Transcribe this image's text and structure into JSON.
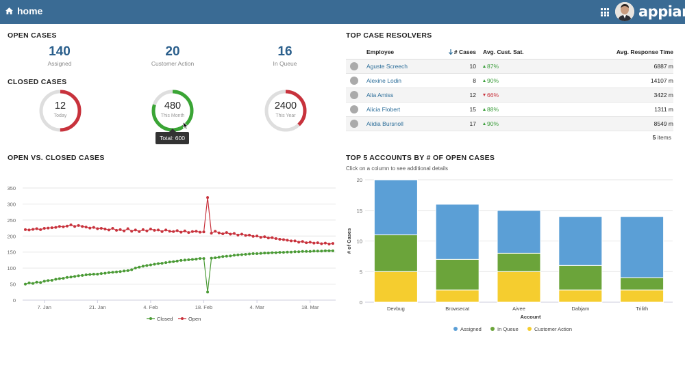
{
  "header": {
    "title": "home",
    "logo_text": "appian",
    "bg_color": "#3a6b94"
  },
  "open_cases": {
    "title": "OPEN CASES",
    "kpis": [
      {
        "value": "140",
        "label": "Assigned"
      },
      {
        "value": "20",
        "label": "Customer Action"
      },
      {
        "value": "16",
        "label": "In Queue"
      }
    ]
  },
  "closed_cases": {
    "title": "CLOSED CASES",
    "gauges": [
      {
        "value": "12",
        "label": "Today",
        "fraction": 0.5,
        "color": "#c8323c"
      },
      {
        "value": "480",
        "label": "This Month",
        "fraction": 0.8,
        "color": "#3aa535"
      },
      {
        "value": "2400",
        "label": "This Year",
        "fraction": 0.38,
        "color": "#c8323c"
      }
    ],
    "tooltip": "Total: 600"
  },
  "resolvers": {
    "title": "TOP CASE RESOLVERS",
    "columns": {
      "employee": "Employee",
      "cases": "# Cases",
      "sat": "Avg. Cust. Sat.",
      "response": "Avg. Response Time"
    },
    "rows": [
      {
        "name": "Aguste Screech",
        "cases": "10",
        "sat": "87%",
        "trend": "up",
        "response": "6887 m"
      },
      {
        "name": "Alexine Lodin",
        "cases": "8",
        "sat": "90%",
        "trend": "up",
        "response": "14107 m"
      },
      {
        "name": "Alia Amiss",
        "cases": "12",
        "sat": "66%",
        "trend": "down",
        "response": "3422 m"
      },
      {
        "name": "Alicia Flobert",
        "cases": "15",
        "sat": "88%",
        "trend": "up",
        "response": "1311 m"
      },
      {
        "name": "Alidia Bursnoll",
        "cases": "17",
        "sat": "90%",
        "trend": "up",
        "response": "8549 m"
      }
    ],
    "items_count": "5",
    "items_label": "items"
  },
  "line_section": {
    "title": "OPEN VS. CLOSED CASES"
  },
  "bar_section": {
    "title": "TOP 5 ACCOUNTS BY # OF OPEN CASES",
    "hint": "Click on a column to see additional details"
  },
  "chart_data": [
    {
      "type": "line",
      "title": "OPEN VS. CLOSED CASES",
      "xlabel": "",
      "ylabel": "",
      "ylim": [
        0,
        350
      ],
      "yticks": [
        0,
        50,
        100,
        150,
        200,
        250,
        300,
        350
      ],
      "x_tick_labels": [
        "7. Jan",
        "21. Jan",
        "4. Feb",
        "18. Feb",
        "4. Mar",
        "18. Mar"
      ],
      "x_tick_index": [
        5,
        19,
        33,
        47,
        61,
        75
      ],
      "series": [
        {
          "name": "Open",
          "color": "#c8323c",
          "values": [
            220,
            219,
            221,
            223,
            220,
            224,
            225,
            226,
            227,
            230,
            229,
            231,
            235,
            230,
            233,
            230,
            228,
            225,
            227,
            223,
            224,
            222,
            219,
            224,
            218,
            220,
            216,
            223,
            215,
            219,
            214,
            220,
            216,
            222,
            218,
            219,
            214,
            219,
            215,
            214,
            217,
            212,
            216,
            211,
            214,
            215,
            212,
            213,
            320,
            209,
            215,
            210,
            207,
            211,
            206,
            208,
            203,
            206,
            202,
            203,
            199,
            200,
            196,
            198,
            194,
            195,
            192,
            190,
            189,
            187,
            185,
            185,
            181,
            183,
            179,
            181,
            178,
            179,
            176,
            178,
            175,
            177
          ]
        },
        {
          "name": "Closed",
          "color": "#4a9a35",
          "values": [
            50,
            54,
            52,
            56,
            55,
            59,
            61,
            62,
            65,
            67,
            68,
            71,
            72,
            74,
            76,
            77,
            79,
            80,
            81,
            81,
            83,
            84,
            86,
            87,
            88,
            89,
            91,
            92,
            95,
            100,
            103,
            106,
            108,
            110,
            112,
            114,
            115,
            117,
            119,
            120,
            122,
            124,
            125,
            126,
            127,
            128,
            130,
            130,
            25,
            131,
            132,
            134,
            136,
            137,
            138,
            140,
            141,
            142,
            143,
            144,
            145,
            145,
            146,
            147,
            147,
            148,
            148,
            149,
            149,
            150,
            150,
            151,
            151,
            152,
            152,
            152,
            153,
            153,
            153,
            154,
            154,
            154
          ]
        }
      ],
      "legend": [
        "Closed",
        "Open"
      ],
      "legend_position": "bottom"
    },
    {
      "type": "bar",
      "stacked": true,
      "title": "TOP 5 ACCOUNTS BY # OF OPEN CASES",
      "xlabel": "Account",
      "ylabel": "# of Cases",
      "ylim": [
        0,
        20
      ],
      "yticks": [
        0,
        5,
        10,
        15,
        20
      ],
      "categories": [
        "Devbug",
        "Browsecat",
        "Aivee",
        "Dabjam",
        "Trilith"
      ],
      "series": [
        {
          "name": "Customer Action",
          "color": "#f5cd2f",
          "values": [
            5,
            2,
            5,
            2,
            2
          ]
        },
        {
          "name": "In Queue",
          "color": "#6ba43a",
          "values": [
            6,
            5,
            3,
            4,
            2
          ]
        },
        {
          "name": "Assigned",
          "color": "#5b9fd6",
          "values": [
            9,
            9,
            7,
            8,
            10
          ]
        }
      ],
      "legend": [
        "Assigned",
        "In Queue",
        "Customer Action"
      ],
      "legend_position": "bottom"
    }
  ]
}
